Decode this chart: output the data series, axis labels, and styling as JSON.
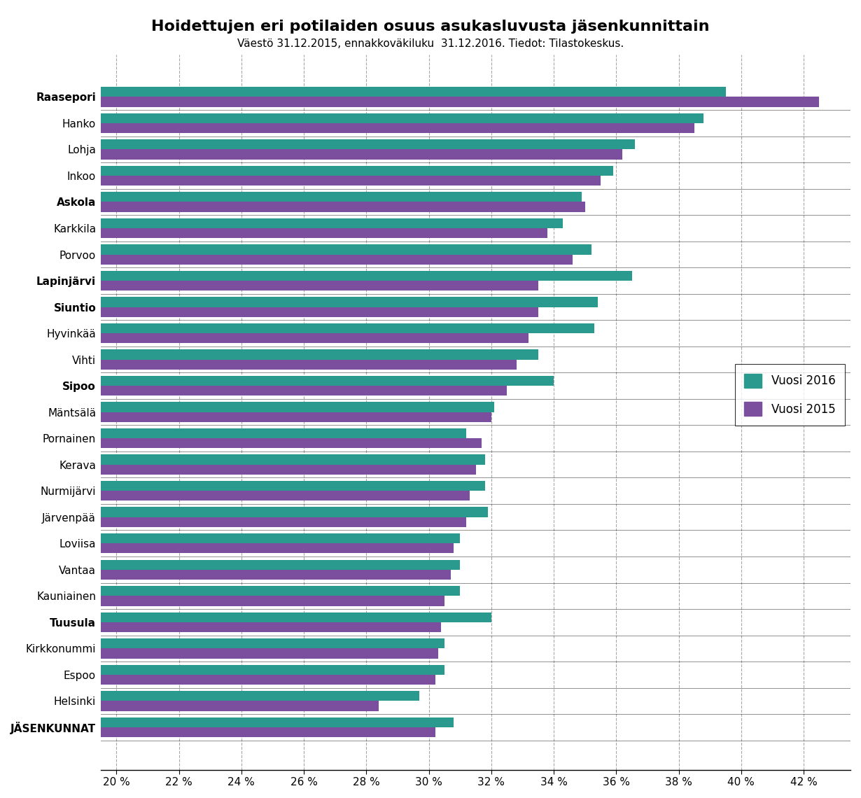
{
  "title": "Hoidettujen eri potilaiden osuus asukasluvusta jäsenkunnittain",
  "subtitle": "Väestö 31.12.2015, ennakkoväkiluku  31.12.2016. Tiedot: Tilastokeskus.",
  "categories": [
    "Raasepori",
    "Hanko",
    "Lohja",
    "Inkoo",
    "Askola",
    "Karkkila",
    "Porvoo",
    "Lapinjärvi",
    "Siuntio",
    "Hyvinkää",
    "Vihti",
    "Sipoo",
    "Mäntsälä",
    "Pornainen",
    "Kerava",
    "Nurmijärvi",
    "Järvenpää",
    "Loviisa",
    "Vantaa",
    "Kauniainen",
    "Tuusula",
    "Kirkkonummi",
    "Espoo",
    "Helsinki",
    "JÄSENKUNNAT"
  ],
  "values_2016": [
    39.5,
    38.8,
    36.6,
    35.9,
    34.9,
    34.3,
    35.2,
    36.5,
    35.4,
    35.3,
    33.5,
    34.0,
    32.1,
    31.2,
    31.8,
    31.8,
    31.9,
    31.0,
    31.0,
    31.0,
    32.0,
    30.5,
    30.5,
    29.7,
    30.8
  ],
  "values_2015": [
    42.5,
    38.5,
    36.2,
    35.5,
    35.0,
    33.8,
    34.6,
    33.5,
    33.5,
    33.2,
    32.8,
    32.5,
    32.0,
    31.7,
    31.5,
    31.3,
    31.2,
    30.8,
    30.7,
    30.5,
    30.4,
    30.3,
    30.2,
    28.4,
    30.2
  ],
  "color_2016": "#2B9A8E",
  "color_2015": "#7B4F9E",
  "xlim": [
    19.5,
    43.5
  ],
  "xticks": [
    20,
    22,
    24,
    26,
    28,
    30,
    32,
    34,
    36,
    38,
    40,
    42
  ],
  "legend_labels": [
    "Vuosi 2016",
    "Vuosi 2015"
  ],
  "background_color": "#FFFFFF",
  "title_fontsize": 16,
  "subtitle_fontsize": 11,
  "bold_labels": [
    "Raasepori",
    "Askola",
    "Lapinjärvi",
    "Siuntio",
    "Sipoo",
    "Tuusula",
    "JÄSENKUNNAT"
  ]
}
